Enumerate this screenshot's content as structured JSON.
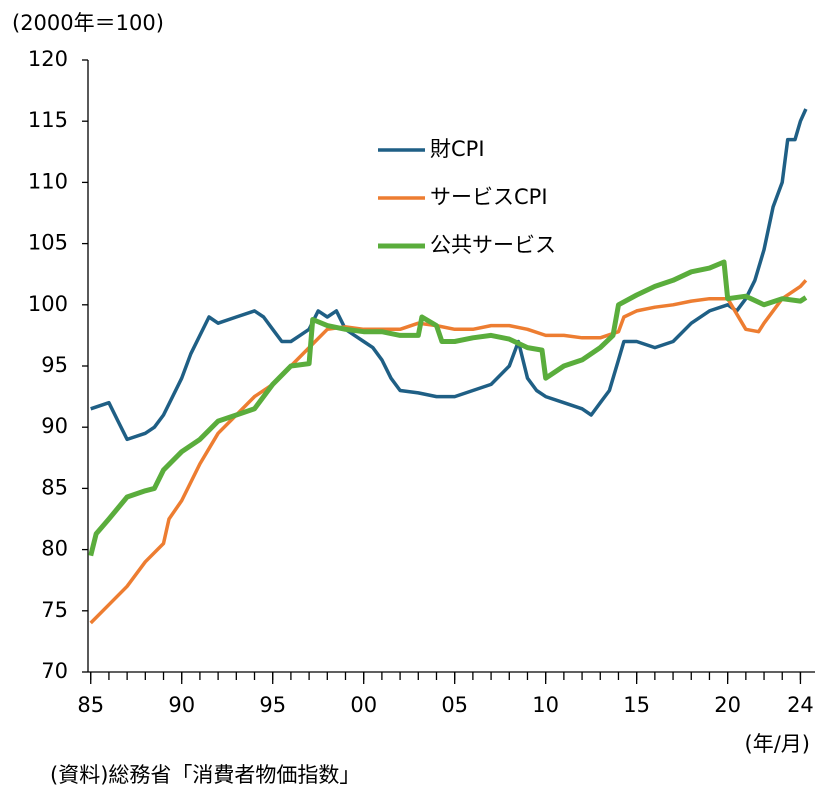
{
  "chart_data": {
    "type": "line",
    "y_unit_label": "(2000年＝100)",
    "x_unit_label": "(年/月)",
    "source": "(資料)総務省「消費者物価指数」",
    "xlim": [
      1984.85,
      2024.8
    ],
    "ylim": [
      70,
      120
    ],
    "yticks": [
      70,
      75,
      80,
      85,
      90,
      95,
      100,
      105,
      110,
      115,
      120
    ],
    "xticks": [
      {
        "value": 1985,
        "label": "85"
      },
      {
        "value": 1990,
        "label": "90"
      },
      {
        "value": 1995,
        "label": "95"
      },
      {
        "value": 2000,
        "label": "00"
      },
      {
        "value": 2005,
        "label": "05"
      },
      {
        "value": 2010,
        "label": "10"
      },
      {
        "value": 2015,
        "label": "15"
      },
      {
        "value": 2020,
        "label": "20"
      },
      {
        "value": 2024,
        "label": "24"
      }
    ],
    "series": [
      {
        "name": "財CPI",
        "color": "#1f5f85",
        "x": [
          1985,
          1986,
          1986.5,
          1987,
          1988,
          1988.5,
          1989,
          1989.5,
          1990,
          1990.5,
          1991,
          1991.5,
          1992,
          1993,
          1994,
          1994.5,
          1995,
          1995.5,
          1996,
          1996.5,
          1997,
          1997.5,
          1998,
          1998.5,
          1999,
          1999.5,
          2000,
          2000.5,
          2001,
          2001.5,
          2002,
          2003,
          2004,
          2005,
          2006,
          2007,
          2008,
          2008.5,
          2009,
          2009.5,
          2010,
          2011,
          2012,
          2012.5,
          2013,
          2013.5,
          2014,
          2014.3,
          2015,
          2016,
          2017,
          2018,
          2019,
          2020,
          2020.5,
          2021,
          2021.5,
          2022,
          2022.5,
          2023,
          2023.3,
          2023.7,
          2024,
          2024.3
        ],
        "values": [
          91.5,
          92,
          90.5,
          89,
          89.5,
          90,
          91,
          92.5,
          94,
          96,
          97.5,
          99,
          98.5,
          99,
          99.5,
          99,
          98,
          97,
          97,
          97.5,
          98,
          99.5,
          99,
          99.5,
          98,
          97.5,
          97,
          96.5,
          95.5,
          94,
          93,
          92.8,
          92.5,
          92.5,
          93,
          93.5,
          95,
          97,
          94,
          93,
          92.5,
          92,
          91.5,
          91,
          92,
          93,
          95.5,
          97,
          97,
          96.5,
          97,
          98.5,
          99.5,
          100,
          99.5,
          100.5,
          102,
          104.5,
          108,
          110,
          113.5,
          113.5,
          115,
          116
        ]
      },
      {
        "name": "サービスCPI",
        "color": "#ed7d31",
        "x": [
          1985,
          1986,
          1987,
          1988,
          1989,
          1989.3,
          1990,
          1991,
          1992,
          1993,
          1994,
          1995,
          1996,
          1997,
          1998,
          1999,
          2000,
          2001,
          2002,
          2003,
          2004,
          2005,
          2006,
          2007,
          2008,
          2009,
          2010,
          2011,
          2012,
          2013,
          2014,
          2014.3,
          2015,
          2016,
          2017,
          2018,
          2019,
          2020,
          2021,
          2021.7,
          2022,
          2023,
          2024,
          2024.3
        ],
        "values": [
          74,
          75.5,
          77,
          79,
          80.5,
          82.5,
          84,
          87,
          89.5,
          91,
          92.5,
          93.5,
          95,
          96.5,
          98,
          98.2,
          98,
          98,
          98,
          98.5,
          98.3,
          98,
          98,
          98.3,
          98.3,
          98,
          97.5,
          97.5,
          97.3,
          97.3,
          97.8,
          99,
          99.5,
          99.8,
          100,
          100.3,
          100.5,
          100.5,
          98,
          97.8,
          98.5,
          100.5,
          101.5,
          102
        ]
      },
      {
        "name": "公共サービス",
        "color": "#5aad3c",
        "x": [
          1985,
          1985.3,
          1986,
          1987,
          1988,
          1988.5,
          1989,
          1990,
          1991,
          1992,
          1993,
          1994,
          1995,
          1996,
          1997,
          1997.2,
          1998,
          1999,
          2000,
          2001,
          2002,
          2003,
          2003.2,
          2004,
          2004.3,
          2005,
          2006,
          2007,
          2008,
          2009,
          2009.8,
          2010,
          2011,
          2012,
          2013,
          2013.7,
          2014,
          2015,
          2016,
          2017,
          2018,
          2019,
          2019.8,
          2020,
          2021,
          2022,
          2023,
          2024,
          2024.3
        ],
        "values": [
          79.5,
          81.3,
          82.5,
          84.3,
          84.8,
          85,
          86.5,
          88,
          89,
          90.5,
          91,
          91.5,
          93.5,
          95,
          95.2,
          98.8,
          98.3,
          98,
          97.8,
          97.8,
          97.5,
          97.5,
          99,
          98.3,
          97,
          97,
          97.3,
          97.5,
          97.2,
          96.5,
          96.3,
          94,
          95,
          95.5,
          96.5,
          97.5,
          100,
          100.8,
          101.5,
          102,
          102.7,
          103,
          103.5,
          100.5,
          100.7,
          100,
          100.5,
          100.3,
          100.6
        ]
      }
    ]
  }
}
